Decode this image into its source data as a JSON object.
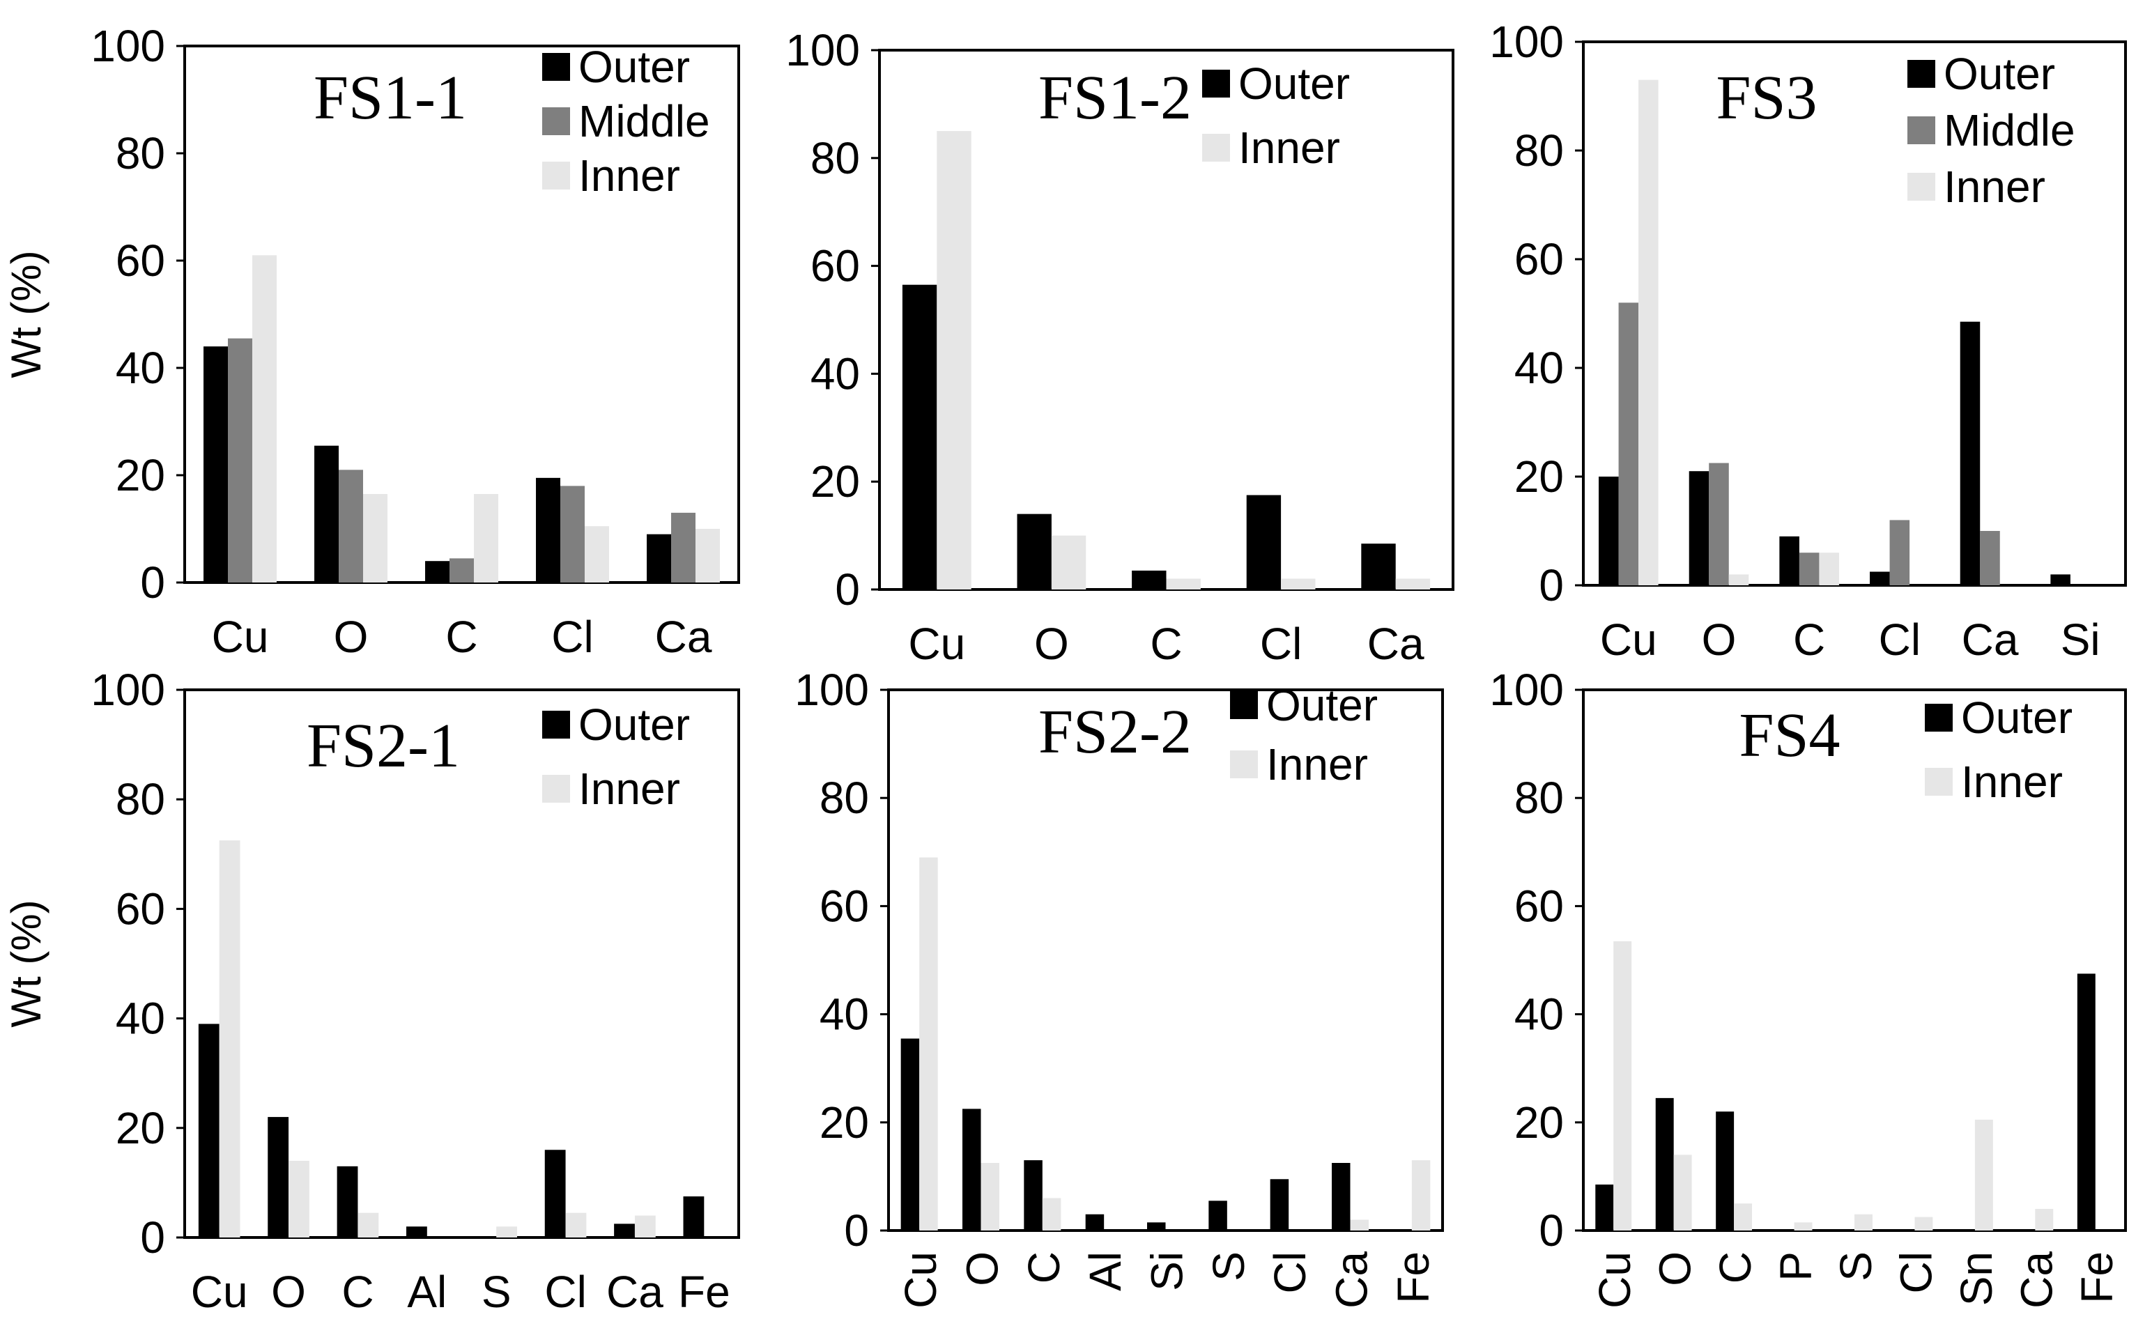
{
  "colors": {
    "Outer": "#000000",
    "Middle": "#7f7f7f",
    "Inner": "#e6e6e6"
  },
  "chart_data": [
    {
      "type": "bar",
      "title": "FS1-1",
      "ylabel": "Wt (%)",
      "ylim": [
        0,
        100
      ],
      "yticks": [
        "0",
        "20",
        "40",
        "60",
        "80",
        "100"
      ],
      "categories": [
        "Cu",
        "O",
        "C",
        "Cl",
        "Ca"
      ],
      "series": [
        {
          "name": "Outer",
          "values": [
            44,
            25.5,
            4,
            19.5,
            9
          ]
        },
        {
          "name": "Middle",
          "values": [
            45.5,
            21,
            4.5,
            18,
            13
          ]
        },
        {
          "name": "Inner",
          "values": [
            61,
            16.5,
            16.5,
            10.5,
            10
          ]
        }
      ]
    },
    {
      "type": "bar",
      "title": "FS1-2",
      "ylabel": "",
      "ylim": [
        0,
        100
      ],
      "yticks": [
        "0",
        "20",
        "40",
        "60",
        "80",
        "100"
      ],
      "categories": [
        "Cu",
        "O",
        "C",
        "Cl",
        "Ca"
      ],
      "series": [
        {
          "name": "Outer",
          "values": [
            56.5,
            14,
            3.5,
            17.5,
            8.5
          ]
        },
        {
          "name": "Inner",
          "values": [
            85,
            10,
            2,
            2,
            2
          ]
        }
      ]
    },
    {
      "type": "bar",
      "title": "FS3",
      "ylabel": "",
      "ylim": [
        0,
        100
      ],
      "yticks": [
        "0",
        "20",
        "40",
        "60",
        "80",
        "100"
      ],
      "categories": [
        "Cu",
        "O",
        "C",
        "Cl",
        "Ca",
        "Si"
      ],
      "series": [
        {
          "name": "Outer",
          "values": [
            20,
            21,
            9,
            2.5,
            48.5,
            2
          ]
        },
        {
          "name": "Middle",
          "values": [
            52,
            22.5,
            6,
            12,
            10,
            0
          ]
        },
        {
          "name": "Inner",
          "values": [
            93,
            2,
            6,
            0,
            0,
            0
          ]
        }
      ]
    },
    {
      "type": "bar",
      "title": "FS2-1",
      "ylabel": "Wt (%)",
      "ylim": [
        0,
        100
      ],
      "yticks": [
        "0",
        "20",
        "40",
        "60",
        "80",
        "100"
      ],
      "categories": [
        "Cu",
        "O",
        "C",
        "Al",
        "S",
        "Cl",
        "Ca",
        "Fe"
      ],
      "series": [
        {
          "name": "Outer",
          "values": [
            39,
            22,
            13,
            2,
            0,
            16,
            2.5,
            7.5
          ]
        },
        {
          "name": "Inner",
          "values": [
            72.5,
            14,
            4.5,
            0,
            2,
            4.5,
            4,
            0
          ]
        }
      ]
    },
    {
      "type": "bar",
      "title": "FS2-2",
      "ylabel": "",
      "ylim": [
        0,
        100
      ],
      "yticks": [
        "0",
        "20",
        "40",
        "60",
        "80",
        "100"
      ],
      "categories": [
        "Cu",
        "O",
        "C",
        "Al",
        "Si",
        "S",
        "Cl",
        "Ca",
        "Fe"
      ],
      "series": [
        {
          "name": "Outer",
          "values": [
            35.5,
            22.5,
            13,
            3,
            1.5,
            5.5,
            9.5,
            12.5,
            0
          ]
        },
        {
          "name": "Inner",
          "values": [
            69,
            12.5,
            6,
            0,
            0,
            0,
            0,
            2,
            13
          ]
        }
      ]
    },
    {
      "type": "bar",
      "title": "FS4",
      "ylabel": "",
      "ylim": [
        0,
        100
      ],
      "yticks": [
        "0",
        "20",
        "40",
        "60",
        "80",
        "100"
      ],
      "categories": [
        "Cu",
        "O",
        "C",
        "P",
        "S",
        "Cl",
        "Sn",
        "Ca",
        "Fe"
      ],
      "series": [
        {
          "name": "Outer",
          "values": [
            8.5,
            24.5,
            22,
            0,
            0,
            0,
            0,
            0,
            47.5
          ]
        },
        {
          "name": "Inner",
          "values": [
            53.5,
            14,
            5,
            1.5,
            3,
            2.5,
            20.5,
            4,
            0
          ]
        }
      ]
    }
  ]
}
